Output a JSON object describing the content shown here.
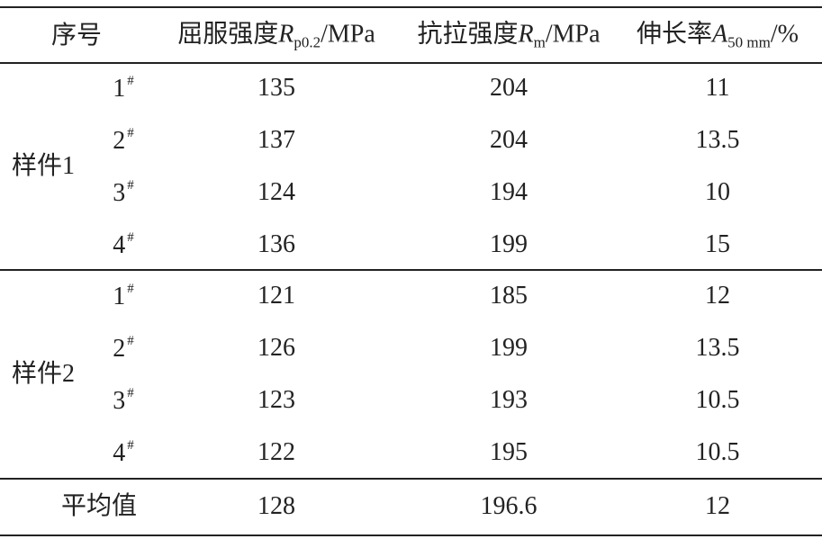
{
  "header": {
    "index": "序号",
    "columns": [
      {
        "label": "屈服强度",
        "symbol": "R",
        "subscript": "p0.2",
        "unit": "/MPa"
      },
      {
        "label": "抗拉强度",
        "symbol": "R",
        "subscript": "m",
        "unit": "/MPa"
      },
      {
        "label": "伸长率",
        "symbol": "A",
        "subscript": "50 mm",
        "unit": "/%"
      }
    ]
  },
  "groups": [
    {
      "name": "样件1",
      "rows": [
        {
          "sample": "1",
          "superscript": "#",
          "values": [
            135,
            204,
            11
          ]
        },
        {
          "sample": "2",
          "superscript": "#",
          "values": [
            137,
            204,
            13.5
          ]
        },
        {
          "sample": "3",
          "superscript": "#",
          "values": [
            124,
            194,
            10
          ]
        },
        {
          "sample": "4",
          "superscript": "#",
          "values": [
            136,
            199,
            15
          ]
        }
      ]
    },
    {
      "name": "样件2",
      "rows": [
        {
          "sample": "1",
          "superscript": "#",
          "values": [
            121,
            185,
            12
          ]
        },
        {
          "sample": "2",
          "superscript": "#",
          "values": [
            126,
            199,
            13.5
          ]
        },
        {
          "sample": "3",
          "superscript": "#",
          "values": [
            123,
            193,
            10.5
          ]
        },
        {
          "sample": "4",
          "superscript": "#",
          "values": [
            122,
            195,
            10.5
          ]
        }
      ]
    }
  ],
  "average": {
    "label": "平均值",
    "values": [
      128,
      196.6,
      12
    ]
  }
}
